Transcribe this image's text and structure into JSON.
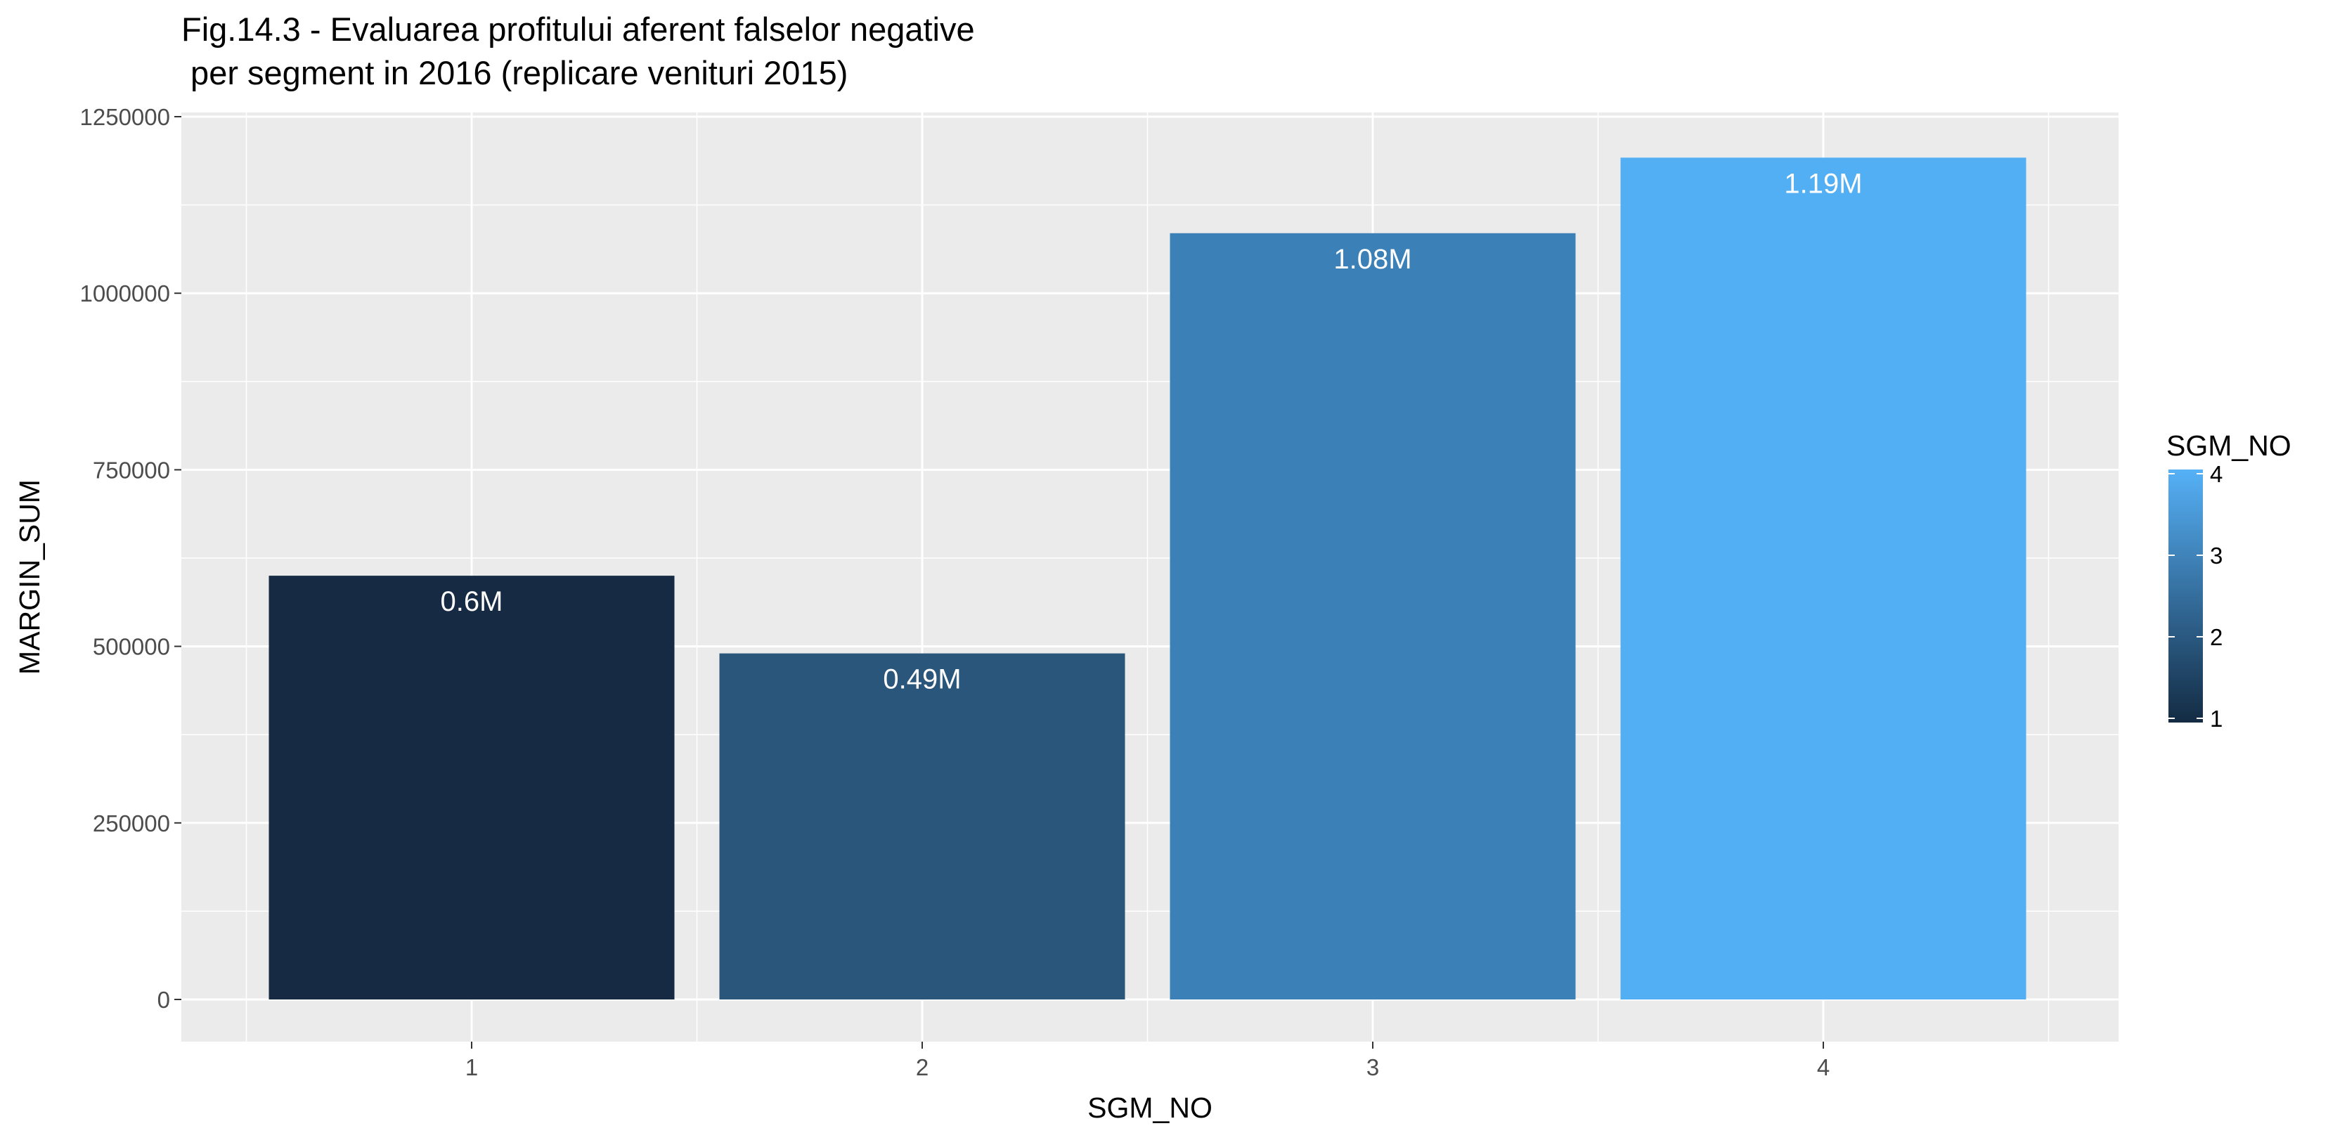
{
  "chart_data": {
    "type": "bar",
    "title_lines": [
      "Fig.14.3 - Evaluarea profitului aferent falselor negative",
      " per segment in 2016 (replicare venituri 2015)"
    ],
    "xlabel": "SGM_NO",
    "ylabel": "MARGIN_SUM",
    "categories": [
      "1",
      "2",
      "3",
      "4"
    ],
    "values": [
      600000,
      490000,
      1085000,
      1192000
    ],
    "data_labels": [
      "0.6M",
      "0.49M",
      "1.08M",
      "1.19M"
    ],
    "ylim": [
      -60000,
      1250000
    ],
    "yticks": [
      0,
      250000,
      500000,
      750000,
      1000000,
      1250000
    ],
    "ytick_labels": [
      "0",
      "250000",
      "500000",
      "750000",
      "1000000",
      "1250000"
    ],
    "colors": [
      "#162b43",
      "#2a567b",
      "#3b80b6",
      "#53aff3"
    ],
    "legend": {
      "title": "SGM_NO",
      "position": "right",
      "labels": [
        "4",
        "3",
        "2",
        "1"
      ],
      "gradient": [
        "#56b1f7",
        "#132b43"
      ]
    },
    "panel_background": "#ebebeb",
    "grid": true
  }
}
